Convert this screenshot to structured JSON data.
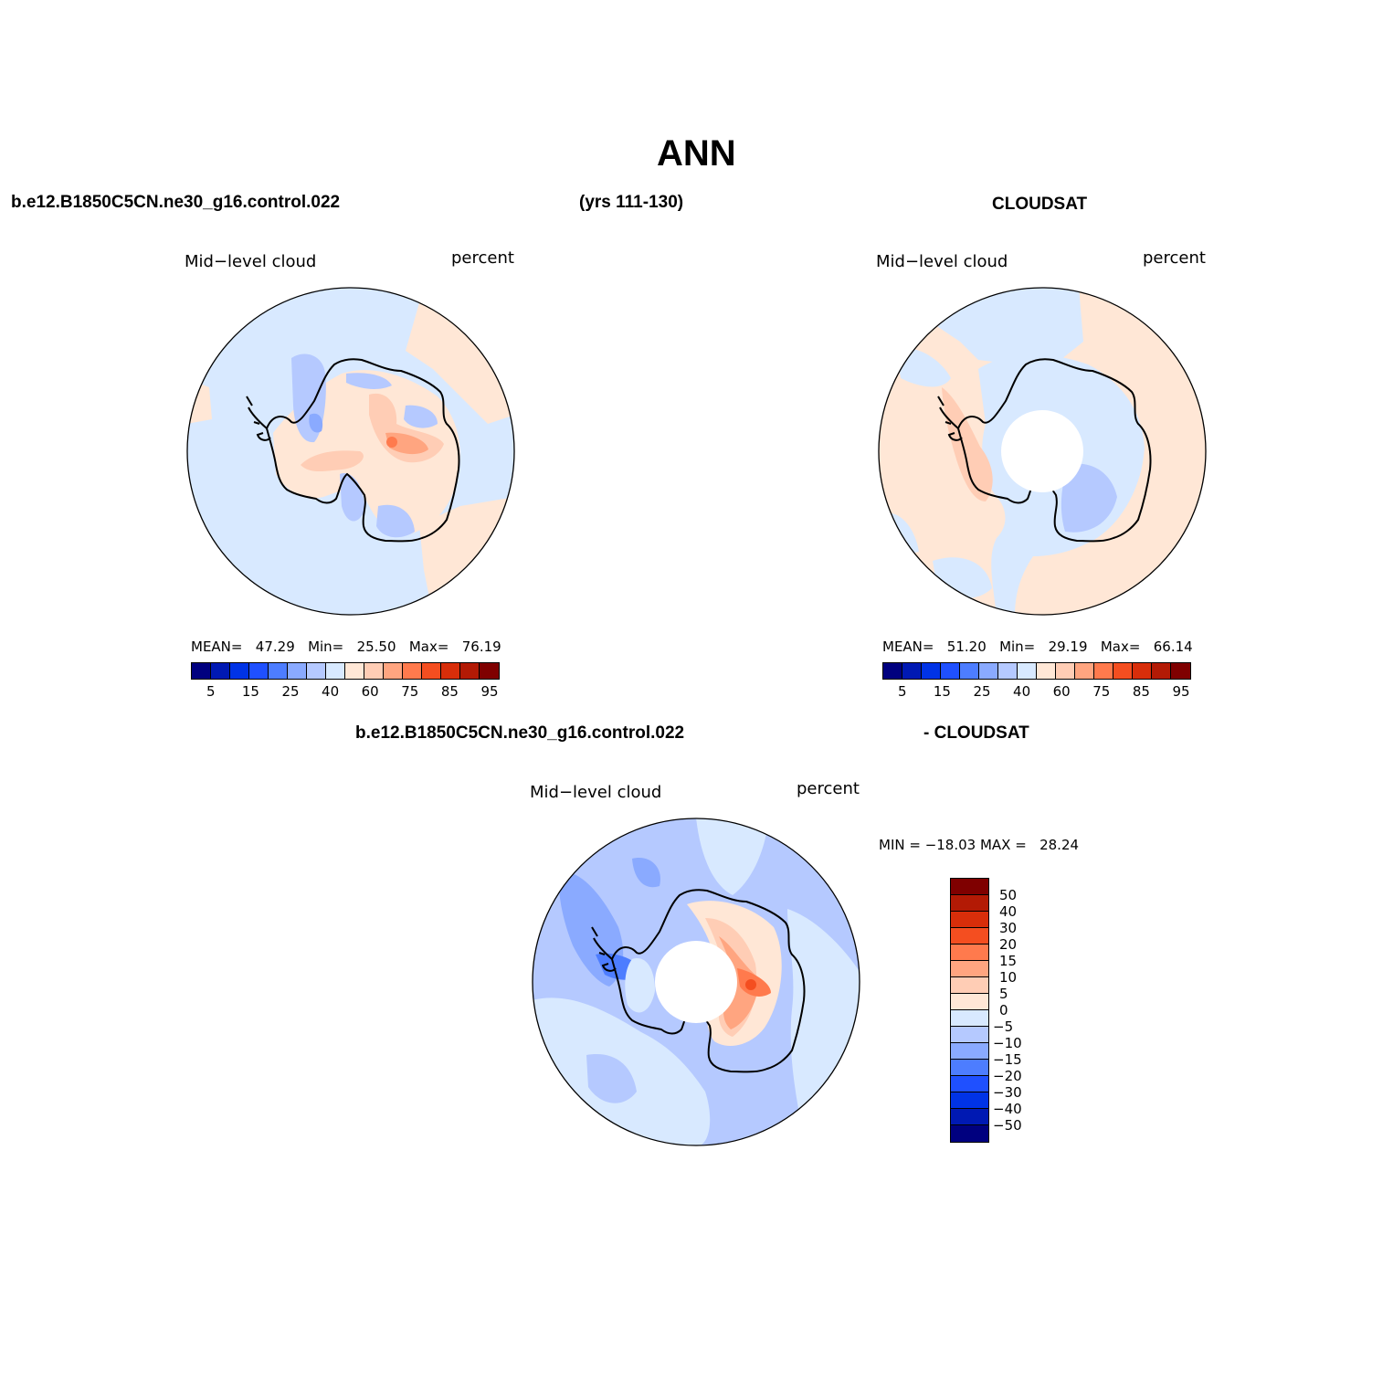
{
  "title": "ANN",
  "header": {
    "case_name": "b.e12.B1850C5CN.ne30_g16.control.022",
    "years": "(yrs 111-130)",
    "obs_name": "CLOUDSAT"
  },
  "panel_model": {
    "var_label": "Mid−level cloud",
    "units": "percent",
    "stats": {
      "mean_label": "MEAN=",
      "mean": "47.29",
      "min_label": "Min=",
      "min": "25.50",
      "max_label": "Max=",
      "max": "76.19"
    }
  },
  "panel_obs": {
    "var_label": "Mid−level cloud",
    "units": "percent",
    "stats": {
      "mean_label": "MEAN=",
      "mean": "51.20",
      "min_label": "Min=",
      "min": "29.19",
      "max_label": "Max=",
      "max": "66.14"
    }
  },
  "panel_diff": {
    "title_left": "b.e12.B1850C5CN.ne30_g16.control.022",
    "title_right": "- CLOUDSAT",
    "var_label": "Mid−level cloud",
    "units": "percent",
    "minmax": "MIN = −18.03 MAX =   28.24"
  },
  "colorbar_abs": {
    "colors": [
      "#00007f",
      "#0019b3",
      "#0033e6",
      "#1f50ff",
      "#4d7dff",
      "#8aaaff",
      "#b5c9ff",
      "#d8e9ff",
      "#ffe7d6",
      "#ffcdb5",
      "#ffa580",
      "#ff7a4d",
      "#f44e20",
      "#d82e0a",
      "#b31a05",
      "#7f0000"
    ],
    "labels": [
      "5",
      "15",
      "25",
      "40",
      "60",
      "75",
      "85",
      "95"
    ]
  },
  "colorbar_diff": {
    "colors": [
      "#7f0000",
      "#b31a05",
      "#d82e0a",
      "#f44e20",
      "#ff7a4d",
      "#ffa580",
      "#ffcdb5",
      "#ffe7d6",
      "#d8e9ff",
      "#b5c9ff",
      "#8aaaff",
      "#4d7dff",
      "#1f50ff",
      "#0033e6",
      "#0019b3",
      "#00007f"
    ],
    "labels": [
      "50",
      "40",
      "30",
      "20",
      "15",
      "10",
      "5",
      "0",
      "−5",
      "−10",
      "−15",
      "−20",
      "−30",
      "−40",
      "−50"
    ]
  },
  "map_colors": {
    "ocean_low": "#d8e9ff",
    "blue_mid": "#b5c9ff",
    "blue_deep": "#8aaaff",
    "blue_strong": "#4d7dff",
    "warm_low": "#ffe7d6",
    "warm_mid": "#ffcdb5",
    "warm_high": "#ffa580",
    "warm_strong": "#ff7a4d",
    "red_core": "#f44e20",
    "coast": "#000000",
    "missing": "#ffffff"
  }
}
